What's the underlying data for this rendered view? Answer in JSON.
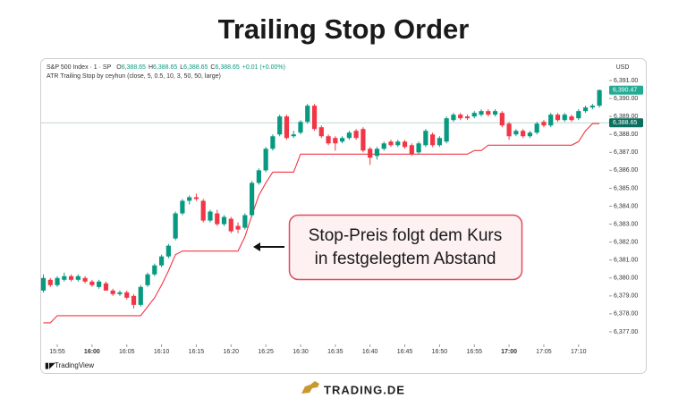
{
  "chart_data": {
    "type": "candlestick",
    "title": "Trailing Stop Order",
    "symbol": "S&P 500 Index · 1 · SP",
    "readout": [
      {
        "key": "O",
        "value": "6,388.65"
      },
      {
        "key": "H",
        "value": "6,388.65"
      },
      {
        "key": "L",
        "value": "6,388.65"
      },
      {
        "key": "C",
        "value": "6,388.65"
      }
    ],
    "change": "+0.01 (+0.00%)",
    "indicator": "ATR Trailing Stop by ceyhun (close, 5, 0.5, 10, 3, 50, 50, large)",
    "currency": "USD",
    "x": [
      "15:53",
      "15:54",
      "15:55",
      "15:56",
      "15:57",
      "15:58",
      "15:59",
      "16:00",
      "16:01",
      "16:02",
      "16:03",
      "16:04",
      "16:05",
      "16:06",
      "16:07",
      "16:08",
      "16:09",
      "16:10",
      "16:11",
      "16:12",
      "16:13",
      "16:14",
      "16:15",
      "16:16",
      "16:17",
      "16:18",
      "16:19",
      "16:20",
      "16:21",
      "16:22",
      "16:23",
      "16:24",
      "16:25",
      "16:26",
      "16:27",
      "16:28",
      "16:29",
      "16:30",
      "16:31",
      "16:32",
      "16:33",
      "16:34",
      "16:35",
      "16:36",
      "16:37",
      "16:38",
      "16:39",
      "16:40",
      "16:41",
      "16:42",
      "16:43",
      "16:44",
      "16:45",
      "16:46",
      "16:47",
      "16:48",
      "16:49",
      "16:50",
      "16:51",
      "16:52",
      "16:53",
      "16:54",
      "16:55",
      "16:56",
      "16:57",
      "16:58",
      "16:59",
      "17:00",
      "17:01",
      "17:02",
      "17:03",
      "17:04",
      "17:05",
      "17:06",
      "17:07",
      "17:08",
      "17:09",
      "17:10",
      "17:11",
      "17:12",
      "17:13"
    ],
    "open": [
      6379.3,
      6379.9,
      6379.6,
      6379.9,
      6380.1,
      6379.9,
      6380.0,
      6379.8,
      6379.5,
      6379.7,
      6379.3,
      6379.1,
      6379.2,
      6379.0,
      6378.5,
      6379.6,
      6380.2,
      6380.7,
      6381.2,
      6382.2,
      6383.6,
      6384.3,
      6384.5,
      6384.3,
      6383.2,
      6383.6,
      6383.0,
      6383.3,
      6382.9,
      6382.8,
      6383.5,
      6385.3,
      6386.0,
      6387.2,
      6388.0,
      6389.0,
      6387.9,
      6388.1,
      6388.7,
      6389.6,
      6388.4,
      6387.9,
      6387.8,
      6387.6,
      6387.8,
      6388.2,
      6388.3,
      6387.2,
      6386.8,
      6387.2,
      6387.6,
      6387.4,
      6387.6,
      6387.4,
      6387.0,
      6387.4,
      6388.0,
      6387.4,
      6387.6,
      6388.8,
      6389.1,
      6389.0,
      6389.0,
      6389.1,
      6389.3,
      6389.1,
      6389.2,
      6388.6,
      6388.0,
      6388.2,
      6387.9,
      6388.1,
      6388.7,
      6388.5,
      6389.1,
      6388.8,
      6389.0,
      6388.9,
      6389.3,
      6389.5,
      6389.6
    ],
    "high": [
      6380.2,
      6380.0,
      6380.1,
      6380.3,
      6380.2,
      6380.2,
      6380.1,
      6379.9,
      6379.9,
      6379.8,
      6379.4,
      6379.3,
      6379.3,
      6379.1,
      6379.6,
      6380.3,
      6380.8,
      6381.3,
      6381.9,
      6383.7,
      6384.4,
      6384.6,
      6384.7,
      6384.4,
      6383.8,
      6383.8,
      6383.5,
      6383.4,
      6383.1,
      6383.6,
      6385.4,
      6386.1,
      6387.3,
      6388.0,
      6389.1,
      6389.1,
      6388.2,
      6388.8,
      6389.7,
      6389.7,
      6388.5,
      6388.0,
      6387.9,
      6387.9,
      6388.2,
      6388.3,
      6388.4,
      6387.3,
      6387.3,
      6387.6,
      6387.7,
      6387.7,
      6387.7,
      6387.5,
      6387.6,
      6388.3,
      6388.1,
      6387.9,
      6389.0,
      6389.2,
      6389.2,
      6389.1,
      6389.3,
      6389.4,
      6389.4,
      6389.4,
      6389.3,
      6388.7,
      6388.3,
      6388.3,
      6388.2,
      6388.7,
      6388.8,
      6389.2,
      6389.2,
      6389.2,
      6389.1,
      6389.4,
      6389.6,
      6389.7,
      6390.5
    ],
    "low": [
      6379.2,
      6379.5,
      6379.5,
      6379.8,
      6379.8,
      6379.8,
      6379.7,
      6379.5,
      6379.4,
      6379.3,
      6379.0,
      6379.0,
      6378.8,
      6378.3,
      6378.4,
      6379.5,
      6380.1,
      6380.6,
      6381.1,
      6382.1,
      6383.5,
      6384.1,
      6384.3,
      6383.1,
      6383.1,
      6382.9,
      6382.9,
      6382.5,
      6382.5,
      6382.7,
      6383.4,
      6385.2,
      6385.9,
      6387.1,
      6387.9,
      6387.7,
      6387.8,
      6388.0,
      6388.6,
      6388.2,
      6387.8,
      6387.4,
      6387.1,
      6387.5,
      6387.7,
      6387.7,
      6387.0,
      6386.3,
      6386.6,
      6387.1,
      6387.3,
      6387.3,
      6387.2,
      6386.8,
      6386.9,
      6387.3,
      6387.3,
      6387.3,
      6387.5,
      6388.7,
      6388.8,
      6388.8,
      6388.9,
      6389.0,
      6389.0,
      6389.0,
      6388.4,
      6387.7,
      6387.9,
      6387.8,
      6387.8,
      6388.0,
      6388.4,
      6388.4,
      6388.7,
      6388.7,
      6388.7,
      6388.8,
      6389.2,
      6389.4,
      6389.5
    ],
    "close": [
      6380.0,
      6379.6,
      6380.0,
      6380.1,
      6379.9,
      6380.1,
      6379.8,
      6379.6,
      6379.8,
      6379.3,
      6379.1,
      6379.2,
      6378.9,
      6378.5,
      6379.5,
      6380.2,
      6380.7,
      6381.2,
      6381.8,
      6383.6,
      6384.3,
      6384.5,
      6384.4,
      6383.2,
      6383.7,
      6383.0,
      6383.4,
      6382.6,
      6382.7,
      6383.5,
      6385.3,
      6386.0,
      6387.2,
      6387.9,
      6389.0,
      6387.8,
      6388.0,
      6388.7,
      6389.6,
      6388.3,
      6387.9,
      6387.5,
      6387.5,
      6387.8,
      6388.1,
      6387.8,
      6387.1,
      6386.7,
      6387.2,
      6387.5,
      6387.4,
      6387.6,
      6387.3,
      6386.9,
      6387.5,
      6388.2,
      6387.4,
      6387.8,
      6388.9,
      6389.1,
      6388.9,
      6388.9,
      6389.2,
      6389.3,
      6389.1,
      6389.3,
      6388.5,
      6387.9,
      6388.2,
      6387.9,
      6388.1,
      6388.6,
      6388.5,
      6389.1,
      6388.8,
      6389.1,
      6388.8,
      6389.3,
      6389.5,
      6389.6,
      6390.47
    ],
    "up_color": "#089981",
    "down_color": "#f23645",
    "stop": {
      "color": "#f23645",
      "values": [
        6377.5,
        6377.5,
        6377.9,
        6377.9,
        6377.9,
        6377.9,
        6377.9,
        6377.9,
        6377.9,
        6377.9,
        6377.9,
        6377.9,
        6377.9,
        6377.9,
        6377.9,
        6378.4,
        6378.9,
        6379.6,
        6380.4,
        6381.3,
        6381.5,
        6381.5,
        6381.5,
        6381.5,
        6381.5,
        6381.5,
        6381.5,
        6381.5,
        6381.5,
        6382.3,
        6383.5,
        6384.6,
        6385.3,
        6385.9,
        6385.9,
        6385.9,
        6385.9,
        6386.9,
        6386.9,
        6386.9,
        6386.9,
        6386.9,
        6386.9,
        6386.9,
        6386.9,
        6386.9,
        6386.9,
        6386.9,
        6386.9,
        6386.9,
        6386.9,
        6386.9,
        6386.9,
        6386.9,
        6386.9,
        6386.9,
        6386.9,
        6386.9,
        6386.9,
        6386.9,
        6386.9,
        6386.9,
        6387.1,
        6387.1,
        6387.4,
        6387.4,
        6387.4,
        6387.4,
        6387.4,
        6387.4,
        6387.4,
        6387.4,
        6387.4,
        6387.4,
        6387.4,
        6387.4,
        6387.4,
        6387.6,
        6388.2,
        6388.6,
        6388.6
      ]
    },
    "ylim": [
      6376.3,
      6392.1
    ],
    "yticks": [
      {
        "value": 6377,
        "label": "6,377.00"
      },
      {
        "value": 6378,
        "label": "6,378.00"
      },
      {
        "value": 6379,
        "label": "6,379.00"
      },
      {
        "value": 6380,
        "label": "6,380.00"
      },
      {
        "value": 6381,
        "label": "6,381.00"
      },
      {
        "value": 6382,
        "label": "6,382.00"
      },
      {
        "value": 6383,
        "label": "6,383.00"
      },
      {
        "value": 6384,
        "label": "6,384.00"
      },
      {
        "value": 6385,
        "label": "6,385.00"
      },
      {
        "value": 6386,
        "label": "6,386.00"
      },
      {
        "value": 6387,
        "label": "6,387.00"
      },
      {
        "value": 6388,
        "label": "6,388.00"
      },
      {
        "value": 6389,
        "label": "6,389.00"
      },
      {
        "value": 6390,
        "label": "6,390.00"
      },
      {
        "value": 6391,
        "label": "6,391.00"
      }
    ],
    "xticks": [
      "15:55",
      "16:00",
      "16:05",
      "16:10",
      "16:15",
      "16:20",
      "16:25",
      "16:30",
      "16:35",
      "16:40",
      "16:45",
      "16:50",
      "16:55",
      "17:00",
      "17:05",
      "17:10"
    ],
    "price_labels": [
      {
        "value": 6390.47,
        "label": "6,390.47",
        "color": "#22ab94"
      },
      {
        "value": 6388.65,
        "label": "6,388.65",
        "color": "#0b6e5e",
        "line": true
      }
    ],
    "annotation": [
      "Stop-Preis folgt dem Kurs",
      "in festgelegtem Abstand"
    ],
    "source": "TradingView",
    "brand": "TRADING.DE"
  }
}
